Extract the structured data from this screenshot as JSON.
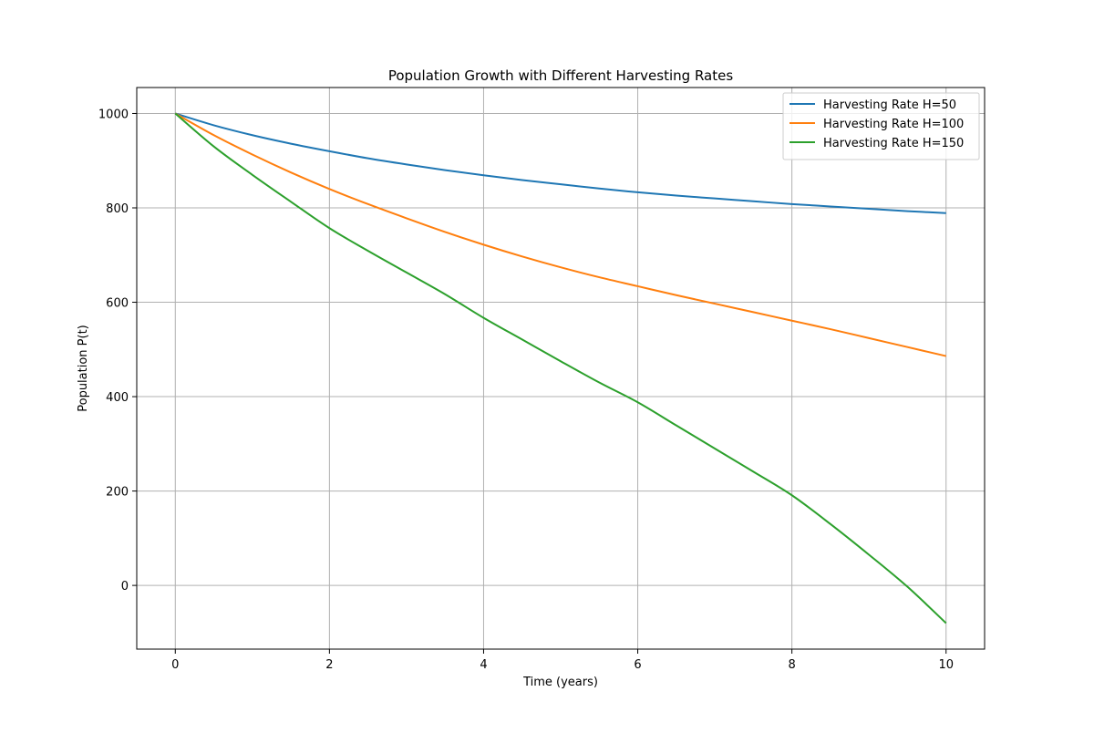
{
  "chart_data": {
    "type": "line",
    "title": "Population Growth with Different Harvesting Rates",
    "xlabel": "Time (years)",
    "ylabel": "Population P(t)",
    "xlim": [
      -0.5,
      10.5
    ],
    "ylim": [
      -135,
      1055
    ],
    "x_ticks": [
      0,
      2,
      4,
      6,
      8,
      10
    ],
    "y_ticks": [
      0,
      200,
      400,
      600,
      800,
      1000
    ],
    "grid": true,
    "legend_position": "top-right",
    "x": [
      0,
      0.5,
      1,
      1.5,
      2,
      2.5,
      3,
      3.5,
      4,
      4.5,
      5,
      5.5,
      6,
      6.5,
      7,
      7.5,
      8,
      8.5,
      9,
      9.5,
      10
    ],
    "series": [
      {
        "name": "Harvesting Rate H=50",
        "color": "#1f77b4",
        "values": [
          1000,
          975,
          954,
          936,
          920,
          905,
          892,
          880,
          869,
          859,
          850,
          841,
          833,
          826,
          820,
          814,
          808,
          803,
          798,
          793,
          789
        ]
      },
      {
        "name": "Harvesting Rate H=100",
        "color": "#ff7f0e",
        "values": [
          1000,
          954,
          913,
          875,
          840,
          808,
          778,
          749,
          722,
          697,
          674,
          653,
          634,
          615,
          597,
          579,
          561,
          543,
          524,
          505,
          486
        ]
      },
      {
        "name": "Harvesting Rate H=150",
        "color": "#2ca02c",
        "values": [
          1000,
          930,
          870,
          813,
          757,
          709,
          663,
          617,
          567,
          521,
          475,
          430,
          388,
          339,
          290,
          241,
          191,
          130,
          65,
          -3,
          -80
        ]
      }
    ]
  }
}
